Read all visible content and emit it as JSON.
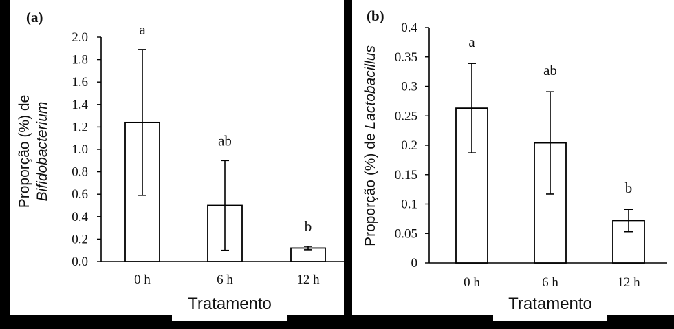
{
  "chart_data": [
    {
      "type": "bar",
      "panel_label": "(a)",
      "categories": [
        "0 h",
        "6 h",
        "12 h"
      ],
      "values": [
        1.24,
        0.5,
        0.12
      ],
      "error": [
        0.65,
        0.4,
        0.015
      ],
      "significance": [
        "a",
        "ab",
        "b"
      ],
      "ylabel_prefix": "Proporção  (%) de",
      "ylabel_italic": "Bifidobacterium",
      "xlabel": "Tratamento",
      "ylim": [
        0,
        2.0
      ],
      "yticks": [
        0.0,
        0.2,
        0.4,
        0.6,
        0.8,
        1.0,
        1.2,
        1.4,
        1.6,
        1.8,
        2.0
      ],
      "ytick_labels": [
        "0.0",
        "0.2",
        "0.4",
        "0.6",
        "0.8",
        "1.0",
        "1.2",
        "1.4",
        "1.6",
        "1.8",
        "2.0"
      ],
      "grid": false
    },
    {
      "type": "bar",
      "panel_label": "(b)",
      "categories": [
        "0 h",
        "6 h",
        "12 h"
      ],
      "values": [
        0.263,
        0.204,
        0.072
      ],
      "error": [
        0.076,
        0.087,
        0.019
      ],
      "significance": [
        "a",
        "ab",
        "b"
      ],
      "ylabel_prefix": "Proporção  (%) de ",
      "ylabel_italic": "Lactobacillus",
      "xlabel": "Tratamento",
      "ylim": [
        0,
        0.4
      ],
      "yticks": [
        0,
        0.05,
        0.1,
        0.15,
        0.2,
        0.25,
        0.3,
        0.35,
        0.4
      ],
      "ytick_labels": [
        "0",
        "0.05",
        "0.1",
        "0.15",
        "0.2",
        "0.25",
        "0.3",
        "0.35",
        "0.4"
      ],
      "grid": false
    }
  ]
}
